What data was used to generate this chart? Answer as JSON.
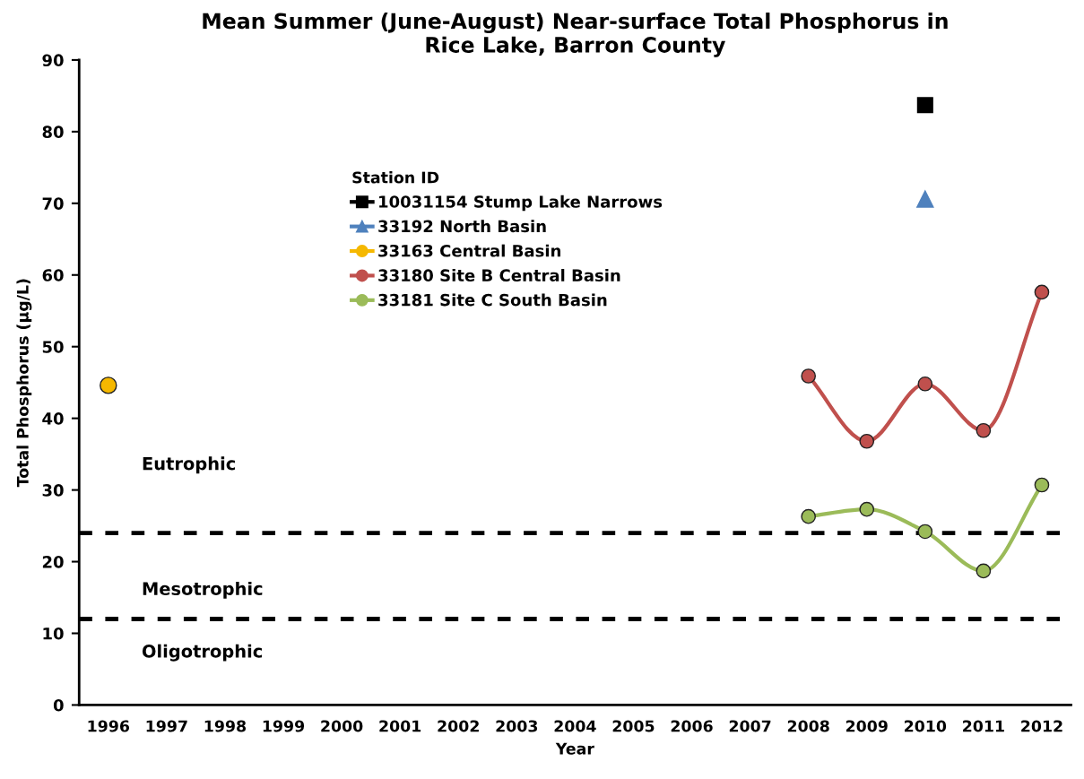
{
  "chart_data": {
    "type": "line",
    "title": "Mean Summer (June-August) Near-surface Total Phosphorus in\nRice Lake, Barron County",
    "xlabel": "Year",
    "ylabel": "Total Phosphorus (µg/L)",
    "legend_title": "Station ID",
    "categories": [
      "1996",
      "1997",
      "1998",
      "1999",
      "2000",
      "2001",
      "2002",
      "2003",
      "2004",
      "2005",
      "2006",
      "2007",
      "2008",
      "2009",
      "2010",
      "2011",
      "2012"
    ],
    "series": [
      {
        "name": "10031154 Stump Lake Narrows",
        "color": "#000000",
        "marker": "square",
        "values": [
          null,
          null,
          null,
          null,
          null,
          null,
          null,
          null,
          null,
          null,
          null,
          null,
          null,
          null,
          83.7,
          null,
          null
        ]
      },
      {
        "name": "33192 North Basin",
        "color": "#4f81bd",
        "marker": "triangle",
        "values": [
          null,
          null,
          null,
          null,
          null,
          null,
          null,
          null,
          null,
          null,
          null,
          null,
          null,
          null,
          70.6,
          null,
          null
        ]
      },
      {
        "name": "33163 Central Basin",
        "color": "#f5b800",
        "marker": "circle",
        "values": [
          44.6,
          null,
          null,
          null,
          null,
          null,
          null,
          null,
          null,
          null,
          null,
          null,
          null,
          null,
          null,
          null,
          null
        ]
      },
      {
        "name": "33180 Site B Central Basin",
        "color": "#c0504d",
        "marker": "circle",
        "values": [
          null,
          null,
          null,
          null,
          null,
          null,
          null,
          null,
          null,
          null,
          null,
          null,
          45.9,
          36.8,
          44.8,
          38.3,
          57.6
        ]
      },
      {
        "name": "33181 Site C South Basin",
        "color": "#9bbb59",
        "marker": "circle",
        "values": [
          null,
          null,
          null,
          null,
          null,
          null,
          null,
          null,
          null,
          null,
          null,
          null,
          26.3,
          27.3,
          24.2,
          18.7,
          30.7
        ]
      }
    ],
    "ylim": [
      0,
      90
    ],
    "yticks": [
      0,
      10,
      20,
      30,
      40,
      50,
      60,
      70,
      80,
      90
    ],
    "ref_lines": [
      {
        "axis": "y",
        "value": 24,
        "color": "#000000",
        "line_style": "dashed"
      },
      {
        "axis": "y",
        "value": 12,
        "color": "#000000",
        "line_style": "dashed"
      }
    ],
    "annotations": [
      "Eutrophic",
      "Mesotrophic",
      "Oligotrophic"
    ],
    "grid": false,
    "legend": "top center",
    "line_style": "solid"
  }
}
